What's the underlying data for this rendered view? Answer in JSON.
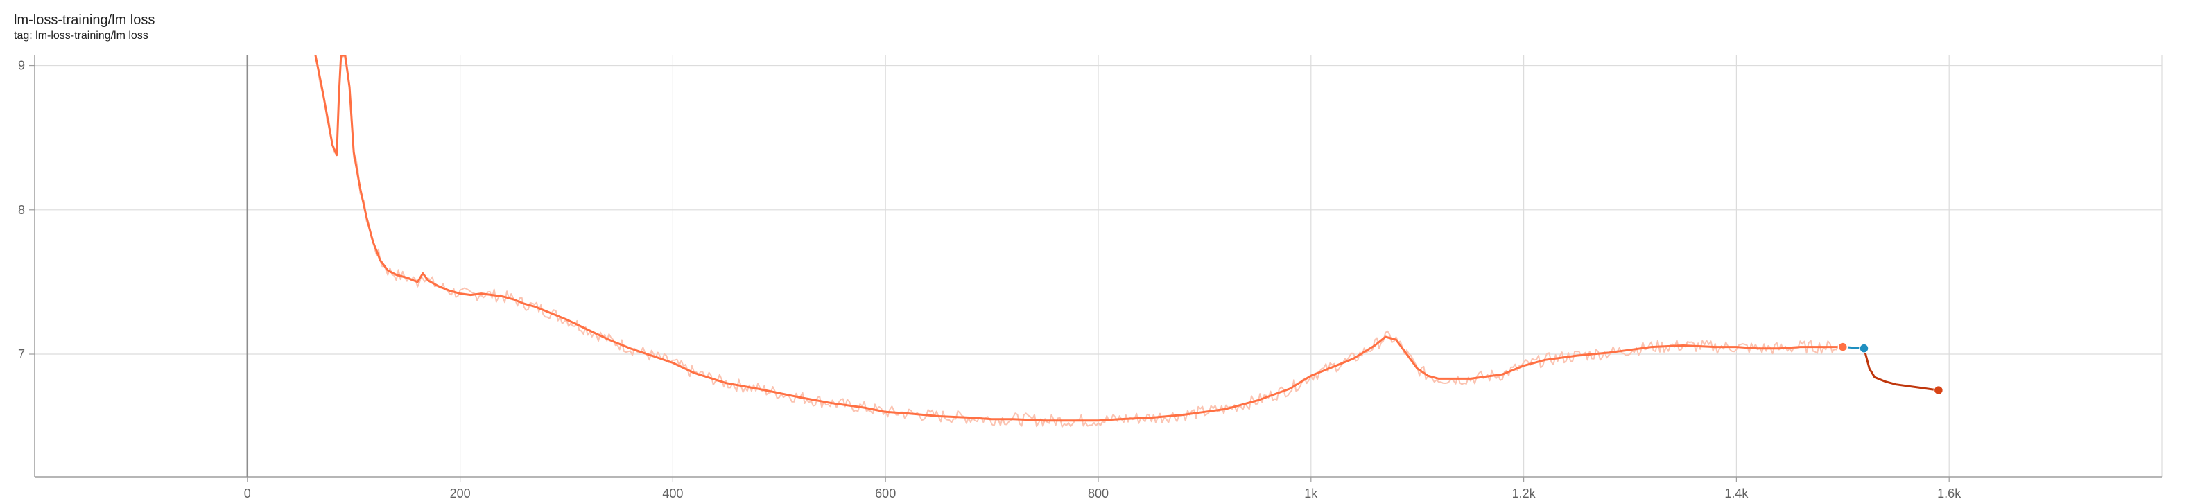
{
  "card": {
    "title": "lm-loss-training/lm loss",
    "tag": "tag: lm-loss-training/lm loss"
  },
  "colors": {
    "smoothed_run1": "#ff7043",
    "raw_run1": "#fbc3b1",
    "run2": "#bf360c",
    "bridge": "#1f8fc0",
    "grid": "#dcdcdc",
    "axis": "#9e9e9e"
  },
  "chart_data": {
    "type": "line",
    "title": "lm-loss-training/lm loss",
    "xlabel": "",
    "ylabel": "",
    "xlim": [
      -200,
      1800
    ],
    "ylim": [
      6.15,
      9.07
    ],
    "x_ticks": [
      0,
      200,
      400,
      600,
      800,
      1000,
      1200,
      1400,
      1600
    ],
    "x_tick_labels": [
      "0",
      "200",
      "400",
      "600",
      "800",
      "1k",
      "1.2k",
      "1.4k",
      "1.6k"
    ],
    "y_ticks": [
      7,
      8,
      9
    ],
    "y_tick_labels": [
      "7",
      "8",
      "9"
    ],
    "grid": true,
    "legend": "none",
    "series": [
      {
        "x": [
          64,
          70,
          75,
          80,
          84,
          86,
          88,
          92,
          96,
          100,
          106,
          112,
          118,
          125,
          132,
          140,
          150,
          160,
          165,
          170,
          180,
          190,
          200,
          210,
          220,
          230,
          240,
          250,
          260,
          270,
          280,
          300,
          320,
          340,
          360,
          380,
          400,
          420,
          450,
          480,
          500,
          520,
          550,
          580,
          600,
          620,
          650,
          680,
          700,
          720,
          750,
          780,
          800,
          820,
          850,
          880,
          900,
          920,
          950,
          980,
          1000,
          1020,
          1040,
          1060,
          1070,
          1080,
          1090,
          1100,
          1110,
          1120,
          1150,
          1180,
          1200,
          1220,
          1250,
          1280,
          1300,
          1320,
          1350,
          1380,
          1400,
          1420,
          1440,
          1460,
          1480,
          1500
        ],
        "y": [
          9.07,
          8.85,
          8.65,
          8.45,
          8.38,
          8.78,
          9.07,
          9.07,
          8.85,
          8.4,
          8.15,
          7.95,
          7.78,
          7.65,
          7.58,
          7.55,
          7.53,
          7.5,
          7.56,
          7.51,
          7.47,
          7.44,
          7.42,
          7.41,
          7.42,
          7.41,
          7.4,
          7.38,
          7.35,
          7.33,
          7.3,
          7.24,
          7.17,
          7.1,
          7.04,
          6.99,
          6.94,
          6.87,
          6.8,
          6.76,
          6.73,
          6.7,
          6.66,
          6.63,
          6.6,
          6.59,
          6.57,
          6.56,
          6.55,
          6.55,
          6.54,
          6.54,
          6.54,
          6.55,
          6.56,
          6.58,
          6.6,
          6.62,
          6.68,
          6.76,
          6.85,
          6.91,
          6.97,
          7.06,
          7.12,
          7.1,
          7.0,
          6.9,
          6.85,
          6.83,
          6.83,
          6.86,
          6.92,
          6.96,
          6.99,
          7.01,
          7.03,
          7.05,
          7.06,
          7.05,
          7.05,
          7.04,
          7.04,
          7.05,
          7.05,
          7.05
        ]
      },
      {
        "x": [
          1500,
          1520
        ],
        "y": [
          7.05,
          7.04
        ]
      },
      {
        "x": [
          1520,
          1525,
          1530,
          1540,
          1550,
          1560,
          1570,
          1580,
          1590
        ],
        "y": [
          7.04,
          6.9,
          6.84,
          6.81,
          6.79,
          6.78,
          6.77,
          6.76,
          6.75
        ]
      }
    ]
  }
}
